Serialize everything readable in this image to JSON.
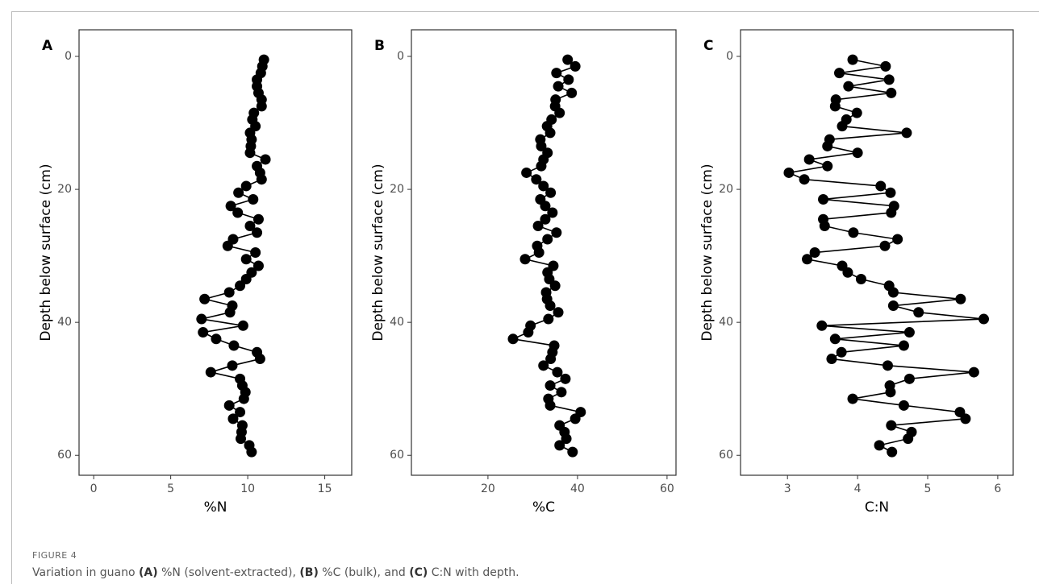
{
  "chart_data": [
    {
      "type": "line",
      "panel_label": "A",
      "x_label": "%N",
      "y_label": "Depth below surface (cm)",
      "color": "#000000",
      "markers": true,
      "y_reversed": true,
      "xlim": [
        -0.95,
        16.75
      ],
      "ylim": [
        -4,
        63
      ],
      "xticks": [
        0,
        5,
        10,
        15
      ],
      "yticks": [
        0,
        20,
        40,
        60
      ],
      "x": [
        11.05,
        10.95,
        10.85,
        10.6,
        10.6,
        10.7,
        10.9,
        10.9,
        10.4,
        10.3,
        10.5,
        10.15,
        10.25,
        10.2,
        10.15,
        11.15,
        10.6,
        10.8,
        10.9,
        9.9,
        9.4,
        10.35,
        8.9,
        9.35,
        10.7,
        10.15,
        10.6,
        9.05,
        8.7,
        10.5,
        9.9,
        10.7,
        10.25,
        9.9,
        9.5,
        8.8,
        7.2,
        9.0,
        8.85,
        7.0,
        9.7,
        7.1,
        7.95,
        9.1,
        10.6,
        10.8,
        9.0,
        7.6,
        9.5,
        9.65,
        9.85,
        9.75,
        8.8,
        9.5,
        9.05,
        9.65,
        9.6,
        9.55,
        10.1,
        10.25
      ],
      "y": [
        0.5,
        1.5,
        2.5,
        3.5,
        4.5,
        5.5,
        6.5,
        7.5,
        8.5,
        9.5,
        10.5,
        11.5,
        12.5,
        13.5,
        14.5,
        15.5,
        16.5,
        17.5,
        18.5,
        19.5,
        20.5,
        21.5,
        22.5,
        23.5,
        24.5,
        25.5,
        26.5,
        27.5,
        28.5,
        29.5,
        30.5,
        31.5,
        32.5,
        33.5,
        34.5,
        35.5,
        36.5,
        37.5,
        38.5,
        39.5,
        40.5,
        41.5,
        42.5,
        43.5,
        44.5,
        45.5,
        46.5,
        47.5,
        48.5,
        49.5,
        50.5,
        51.5,
        52.5,
        53.5,
        54.5,
        55.5,
        56.5,
        57.5,
        58.5,
        59.5
      ]
    },
    {
      "type": "line",
      "panel_label": "B",
      "x_label": "%C",
      "y_label": "Depth below surface (cm)",
      "color": "#000000",
      "markers": true,
      "y_reversed": true,
      "xlim": [
        2.9,
        62
      ],
      "ylim": [
        -4,
        63
      ],
      "xticks": [
        20,
        40,
        60
      ],
      "yticks": [
        0,
        20,
        40,
        60
      ],
      "x": [
        37.8,
        39.5,
        35.3,
        38.0,
        35.7,
        38.7,
        35.1,
        35.0,
        36.0,
        34.2,
        33.2,
        33.9,
        31.7,
        31.9,
        33.3,
        32.4,
        31.9,
        28.6,
        30.8,
        32.4,
        34.0,
        31.7,
        32.8,
        34.4,
        32.8,
        31.2,
        35.3,
        33.3,
        31.0,
        31.4,
        28.3,
        34.6,
        33.3,
        33.7,
        35.0,
        33.0,
        33.2,
        33.9,
        35.7,
        33.5,
        29.5,
        29.0,
        25.6,
        34.8,
        34.4,
        34.0,
        32.4,
        35.5,
        37.3,
        33.9,
        36.4,
        33.5,
        33.9,
        40.7,
        39.5,
        36.0,
        37.1,
        37.5,
        36.0,
        38.9
      ],
      "y": [
        0.5,
        1.5,
        2.5,
        3.5,
        4.5,
        5.5,
        6.5,
        7.5,
        8.5,
        9.5,
        10.5,
        11.5,
        12.5,
        13.5,
        14.5,
        15.5,
        16.5,
        17.5,
        18.5,
        19.5,
        20.5,
        21.5,
        22.5,
        23.5,
        24.5,
        25.5,
        26.5,
        27.5,
        28.5,
        29.5,
        30.5,
        31.5,
        32.5,
        33.5,
        34.5,
        35.5,
        36.5,
        37.5,
        38.5,
        39.5,
        40.5,
        41.5,
        42.5,
        43.5,
        44.5,
        45.5,
        46.5,
        47.5,
        48.5,
        49.5,
        50.5,
        51.5,
        52.5,
        53.5,
        54.5,
        55.5,
        56.5,
        57.5,
        58.5,
        59.5
      ]
    },
    {
      "type": "line",
      "panel_label": "C",
      "x_label": "C:N",
      "y_label": "Depth below surface (cm)",
      "color": "#000000",
      "markers": true,
      "y_reversed": true,
      "xlim": [
        2.33,
        6.22
      ],
      "ylim": [
        -4,
        63
      ],
      "xticks": [
        3,
        4,
        5,
        6
      ],
      "yticks": [
        0,
        20,
        40,
        60
      ],
      "x": [
        3.93,
        4.4,
        3.74,
        4.45,
        3.87,
        4.48,
        3.69,
        3.68,
        3.99,
        3.84,
        3.78,
        4.7,
        3.6,
        3.57,
        4.0,
        3.31,
        3.57,
        3.02,
        3.24,
        4.33,
        4.47,
        3.51,
        4.52,
        4.48,
        3.51,
        3.53,
        3.94,
        4.57,
        4.39,
        3.39,
        3.28,
        3.78,
        3.86,
        4.05,
        4.45,
        4.51,
        5.47,
        4.51,
        4.87,
        5.8,
        3.49,
        4.74,
        3.68,
        4.66,
        3.77,
        3.63,
        4.43,
        5.66,
        4.74,
        4.46,
        4.47,
        3.93,
        4.66,
        5.46,
        5.54,
        4.48,
        4.77,
        4.72,
        4.31,
        4.49
      ],
      "y": [
        0.5,
        1.5,
        2.5,
        3.5,
        4.5,
        5.5,
        6.5,
        7.5,
        8.5,
        9.5,
        10.5,
        11.5,
        12.5,
        13.5,
        14.5,
        15.5,
        16.5,
        17.5,
        18.5,
        19.5,
        20.5,
        21.5,
        22.5,
        23.5,
        24.5,
        25.5,
        26.5,
        27.5,
        28.5,
        29.5,
        30.5,
        31.5,
        32.5,
        33.5,
        34.5,
        35.5,
        36.5,
        37.5,
        38.5,
        39.5,
        40.5,
        41.5,
        42.5,
        43.5,
        44.5,
        45.5,
        46.5,
        47.5,
        48.5,
        49.5,
        50.5,
        51.5,
        52.5,
        53.5,
        54.5,
        55.5,
        56.5,
        57.5,
        58.5,
        59.5
      ]
    }
  ],
  "figure_label": "FIGURE 4",
  "caption_parts": [
    "Variation in guano ",
    "(A)",
    " %N (solvent-extracted), ",
    "(B)",
    " %C (bulk), and ",
    "(C)",
    " C:N with depth."
  ]
}
